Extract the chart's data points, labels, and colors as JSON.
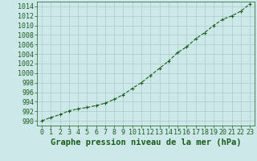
{
  "x": [
    0,
    1,
    2,
    3,
    4,
    5,
    6,
    7,
    8,
    9,
    10,
    11,
    12,
    13,
    14,
    15,
    16,
    17,
    18,
    19,
    20,
    21,
    22,
    23
  ],
  "y": [
    990.0,
    990.7,
    991.3,
    992.1,
    992.5,
    992.8,
    993.2,
    993.7,
    994.5,
    995.5,
    996.8,
    998.0,
    999.5,
    1001.0,
    1002.5,
    1004.3,
    1005.5,
    1007.2,
    1008.5,
    1010.0,
    1011.3,
    1012.0,
    1013.0,
    1014.5
  ],
  "line_color": "#1a5c1a",
  "marker_color": "#1a5c1a",
  "bg_color": "#cce8e8",
  "grid_color": "#aacccc",
  "title": "Graphe pression niveau de la mer (hPa)",
  "xlim": [
    -0.5,
    23.5
  ],
  "ylim": [
    989,
    1015
  ],
  "yticks": [
    990,
    992,
    994,
    996,
    998,
    1000,
    1002,
    1004,
    1006,
    1008,
    1010,
    1012,
    1014
  ],
  "xticks": [
    0,
    1,
    2,
    3,
    4,
    5,
    6,
    7,
    8,
    9,
    10,
    11,
    12,
    13,
    14,
    15,
    16,
    17,
    18,
    19,
    20,
    21,
    22,
    23
  ],
  "title_fontsize": 7.5,
  "tick_fontsize": 6,
  "title_color": "#1a5c1a",
  "tick_color": "#1a5c1a",
  "line_width": 0.8,
  "marker_size": 3.5,
  "marker_ew": 0.8
}
